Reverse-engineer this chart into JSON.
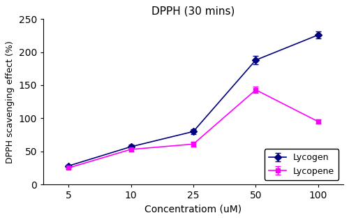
{
  "title": "DPPH (30 mins)",
  "xlabel": "Concentratiom (uM)",
  "ylabel": "DPPH scavenging effect (%)",
  "x_labels": [
    "5",
    "10",
    "25",
    "50",
    "100"
  ],
  "lycogen_y": [
    28,
    57,
    80,
    188,
    226
  ],
  "lycogen_yerr": [
    2,
    3,
    4,
    6,
    5
  ],
  "lycopene_y": [
    25,
    53,
    61,
    143,
    95
  ],
  "lycopene_yerr": [
    2,
    3,
    4,
    5,
    3
  ],
  "lycogen_color": "#000080",
  "lycopene_color": "#FF00FF",
  "ylim": [
    0,
    250
  ],
  "yticks": [
    0,
    50,
    100,
    150,
    200,
    250
  ],
  "legend_labels": [
    "Lycogen",
    "Lycopene"
  ],
  "legend_loc": "lower right",
  "bg_color": "#f0f0f0"
}
